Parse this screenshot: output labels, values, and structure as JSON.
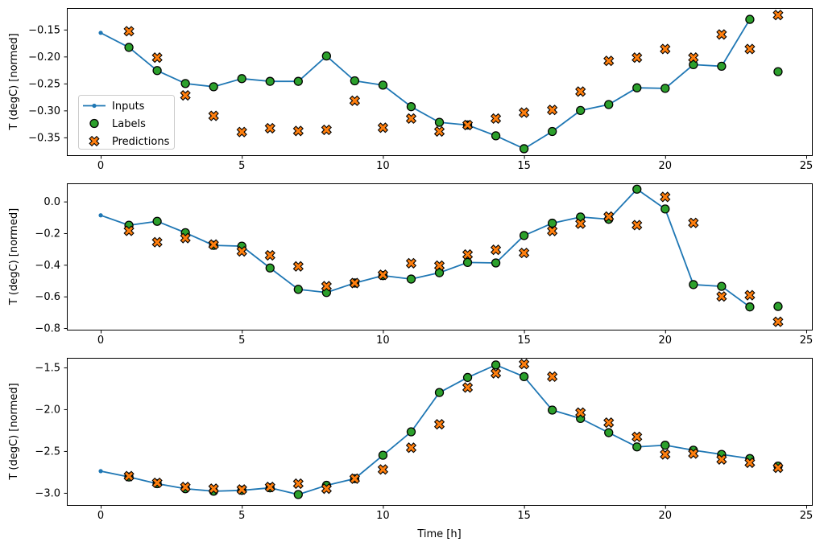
{
  "figure": {
    "xlabel": "Time [h]",
    "ylabel": "T (degC) [normed]",
    "background": "#ffffff",
    "colors": {
      "inputs": "#1f77b4",
      "labels": "#2ca02c",
      "predictions": "#ff7f0e",
      "marker_edge": "#000000",
      "spine": "#000000",
      "legend_border": "#cccccc",
      "legend_bg": "#ffffff"
    },
    "legend": {
      "position": "lower-left-inside-first-subplot",
      "entries": [
        {
          "label": "Inputs",
          "marker": "line-dot",
          "color": "#1f77b4"
        },
        {
          "label": "Labels",
          "marker": "circle",
          "color": "#2ca02c"
        },
        {
          "label": "Predictions",
          "marker": "X",
          "color": "#ff7f0e"
        }
      ]
    }
  },
  "chart_data": [
    {
      "type": "line",
      "subplot": 1,
      "ylabel": "T (degC) [normed]",
      "xlabel": "",
      "grid": false,
      "xlim": [
        -1.2,
        25.2
      ],
      "ylim": [
        -0.383,
        -0.11
      ],
      "xticks": [
        0,
        5,
        10,
        15,
        20,
        25
      ],
      "xtick_labels": [
        "0",
        "5",
        "10",
        "15",
        "20",
        "25"
      ],
      "yticks": [
        -0.15,
        -0.2,
        -0.25,
        -0.3,
        -0.35
      ],
      "ytick_labels": [
        "−0.15",
        "−0.20",
        "−0.25",
        "−0.30",
        "−0.35"
      ],
      "series": [
        {
          "name": "Inputs",
          "type": "line",
          "marker": "dot",
          "color": "#1f77b4",
          "x": [
            0,
            1,
            2,
            3,
            4,
            5,
            6,
            7,
            8,
            9,
            10,
            11,
            12,
            13,
            14,
            15,
            16,
            17,
            18,
            19,
            20,
            21,
            22,
            23
          ],
          "y": [
            -0.156,
            -0.183,
            -0.226,
            -0.25,
            -0.256,
            -0.241,
            -0.246,
            -0.246,
            -0.199,
            -0.245,
            -0.253,
            -0.293,
            -0.322,
            -0.327,
            -0.347,
            -0.371,
            -0.339,
            -0.3,
            -0.289,
            -0.258,
            -0.259,
            -0.215,
            -0.218,
            -0.131
          ]
        },
        {
          "name": "Labels",
          "type": "scatter",
          "marker": "circle",
          "color": "#2ca02c",
          "x": [
            1,
            2,
            3,
            4,
            5,
            6,
            7,
            8,
            9,
            10,
            11,
            12,
            13,
            14,
            15,
            16,
            17,
            18,
            19,
            20,
            21,
            22,
            23,
            24
          ],
          "y": [
            -0.183,
            -0.226,
            -0.25,
            -0.256,
            -0.241,
            -0.246,
            -0.246,
            -0.199,
            -0.245,
            -0.253,
            -0.293,
            -0.322,
            -0.327,
            -0.347,
            -0.371,
            -0.339,
            -0.3,
            -0.289,
            -0.258,
            -0.259,
            -0.215,
            -0.218,
            -0.131,
            -0.228
          ]
        },
        {
          "name": "Predictions",
          "type": "scatter",
          "marker": "X",
          "color": "#ff7f0e",
          "x": [
            1,
            2,
            3,
            4,
            5,
            6,
            7,
            8,
            9,
            10,
            11,
            12,
            13,
            14,
            15,
            16,
            17,
            18,
            19,
            20,
            21,
            22,
            23,
            24
          ],
          "y": [
            -0.153,
            -0.202,
            -0.272,
            -0.31,
            -0.34,
            -0.333,
            -0.338,
            -0.336,
            -0.282,
            -0.332,
            -0.315,
            -0.339,
            -0.327,
            -0.315,
            -0.304,
            -0.299,
            -0.265,
            -0.208,
            -0.202,
            -0.186,
            -0.202,
            -0.159,
            -0.186,
            -0.123
          ]
        }
      ]
    },
    {
      "type": "line",
      "subplot": 2,
      "ylabel": "T (degC) [normed]",
      "xlabel": "",
      "grid": false,
      "xlim": [
        -1.2,
        25.2
      ],
      "ylim": [
        -0.81,
        0.115
      ],
      "xticks": [
        0,
        5,
        10,
        15,
        20,
        25
      ],
      "xtick_labels": [
        "0",
        "5",
        "10",
        "15",
        "20",
        "25"
      ],
      "yticks": [
        0.0,
        -0.2,
        -0.4,
        -0.6,
        -0.8
      ],
      "ytick_labels": [
        "0.0",
        "−0.2",
        "−0.4",
        "−0.6",
        "−0.8"
      ],
      "series": [
        {
          "name": "Inputs",
          "type": "line",
          "marker": "dot",
          "color": "#1f77b4",
          "x": [
            0,
            1,
            2,
            3,
            4,
            5,
            6,
            7,
            8,
            9,
            10,
            11,
            12,
            13,
            14,
            15,
            16,
            17,
            18,
            19,
            20,
            21,
            22,
            23
          ],
          "y": [
            -0.087,
            -0.15,
            -0.125,
            -0.197,
            -0.277,
            -0.282,
            -0.42,
            -0.555,
            -0.575,
            -0.515,
            -0.468,
            -0.49,
            -0.45,
            -0.385,
            -0.388,
            -0.215,
            -0.137,
            -0.098,
            -0.112,
            0.078,
            -0.047,
            -0.525,
            -0.536,
            -0.666
          ]
        },
        {
          "name": "Labels",
          "type": "scatter",
          "marker": "circle",
          "color": "#2ca02c",
          "x": [
            1,
            2,
            3,
            4,
            5,
            6,
            7,
            8,
            9,
            10,
            11,
            12,
            13,
            14,
            15,
            16,
            17,
            18,
            19,
            20,
            21,
            22,
            23,
            24
          ],
          "y": [
            -0.15,
            -0.125,
            -0.197,
            -0.277,
            -0.282,
            -0.42,
            -0.555,
            -0.575,
            -0.515,
            -0.468,
            -0.49,
            -0.45,
            -0.385,
            -0.388,
            -0.215,
            -0.137,
            -0.098,
            -0.112,
            0.078,
            -0.047,
            -0.525,
            -0.536,
            -0.666,
            -0.663
          ]
        },
        {
          "name": "Predictions",
          "type": "scatter",
          "marker": "X",
          "color": "#ff7f0e",
          "x": [
            1,
            2,
            3,
            4,
            5,
            6,
            7,
            8,
            9,
            10,
            11,
            12,
            13,
            14,
            15,
            16,
            17,
            18,
            19,
            20,
            21,
            22,
            23,
            24
          ],
          "y": [
            -0.185,
            -0.257,
            -0.231,
            -0.272,
            -0.315,
            -0.34,
            -0.41,
            -0.535,
            -0.515,
            -0.463,
            -0.39,
            -0.405,
            -0.335,
            -0.305,
            -0.325,
            -0.186,
            -0.14,
            -0.095,
            -0.149,
            0.029,
            -0.135,
            -0.6,
            -0.592,
            -0.76
          ]
        }
      ]
    },
    {
      "type": "line",
      "subplot": 3,
      "ylabel": "T (degC) [normed]",
      "xlabel": "Time [h]",
      "grid": false,
      "xlim": [
        -1.2,
        25.2
      ],
      "ylim": [
        -3.145,
        -1.385
      ],
      "xticks": [
        0,
        5,
        10,
        15,
        20,
        25
      ],
      "xtick_labels": [
        "0",
        "5",
        "10",
        "15",
        "20",
        "25"
      ],
      "yticks": [
        -1.5,
        -2.0,
        -2.5,
        -3.0
      ],
      "ytick_labels": [
        "−1.5",
        "−2.0",
        "−2.5",
        "−3.0"
      ],
      "series": [
        {
          "name": "Inputs",
          "type": "line",
          "marker": "dot",
          "color": "#1f77b4",
          "x": [
            0,
            1,
            2,
            3,
            4,
            5,
            6,
            7,
            8,
            9,
            10,
            11,
            12,
            13,
            14,
            15,
            16,
            17,
            18,
            19,
            20,
            21,
            22,
            23
          ],
          "y": [
            -2.74,
            -2.81,
            -2.89,
            -2.95,
            -2.98,
            -2.97,
            -2.94,
            -3.02,
            -2.91,
            -2.83,
            -2.55,
            -2.27,
            -1.8,
            -1.62,
            -1.47,
            -1.61,
            -2.01,
            -2.11,
            -2.28,
            -2.45,
            -2.43,
            -2.49,
            -2.54,
            -2.59
          ]
        },
        {
          "name": "Labels",
          "type": "scatter",
          "marker": "circle",
          "color": "#2ca02c",
          "x": [
            1,
            2,
            3,
            4,
            5,
            6,
            7,
            8,
            9,
            10,
            11,
            12,
            13,
            14,
            15,
            16,
            17,
            18,
            19,
            20,
            21,
            22,
            23,
            24
          ],
          "y": [
            -2.81,
            -2.89,
            -2.95,
            -2.98,
            -2.97,
            -2.94,
            -3.02,
            -2.91,
            -2.83,
            -2.55,
            -2.27,
            -1.8,
            -1.62,
            -1.47,
            -1.61,
            -2.01,
            -2.11,
            -2.28,
            -2.45,
            -2.43,
            -2.49,
            -2.54,
            -2.59,
            -2.68
          ]
        },
        {
          "name": "Predictions",
          "type": "scatter",
          "marker": "X",
          "color": "#ff7f0e",
          "x": [
            1,
            2,
            3,
            4,
            5,
            6,
            7,
            8,
            9,
            10,
            11,
            12,
            13,
            14,
            15,
            16,
            17,
            18,
            19,
            20,
            21,
            22,
            23,
            24
          ],
          "y": [
            -2.8,
            -2.88,
            -2.93,
            -2.95,
            -2.96,
            -2.93,
            -2.89,
            -2.95,
            -2.83,
            -2.72,
            -2.46,
            -2.18,
            -1.74,
            -1.57,
            -1.46,
            -1.61,
            -2.04,
            -2.16,
            -2.33,
            -2.54,
            -2.53,
            -2.6,
            -2.64,
            -2.7
          ]
        }
      ]
    }
  ]
}
